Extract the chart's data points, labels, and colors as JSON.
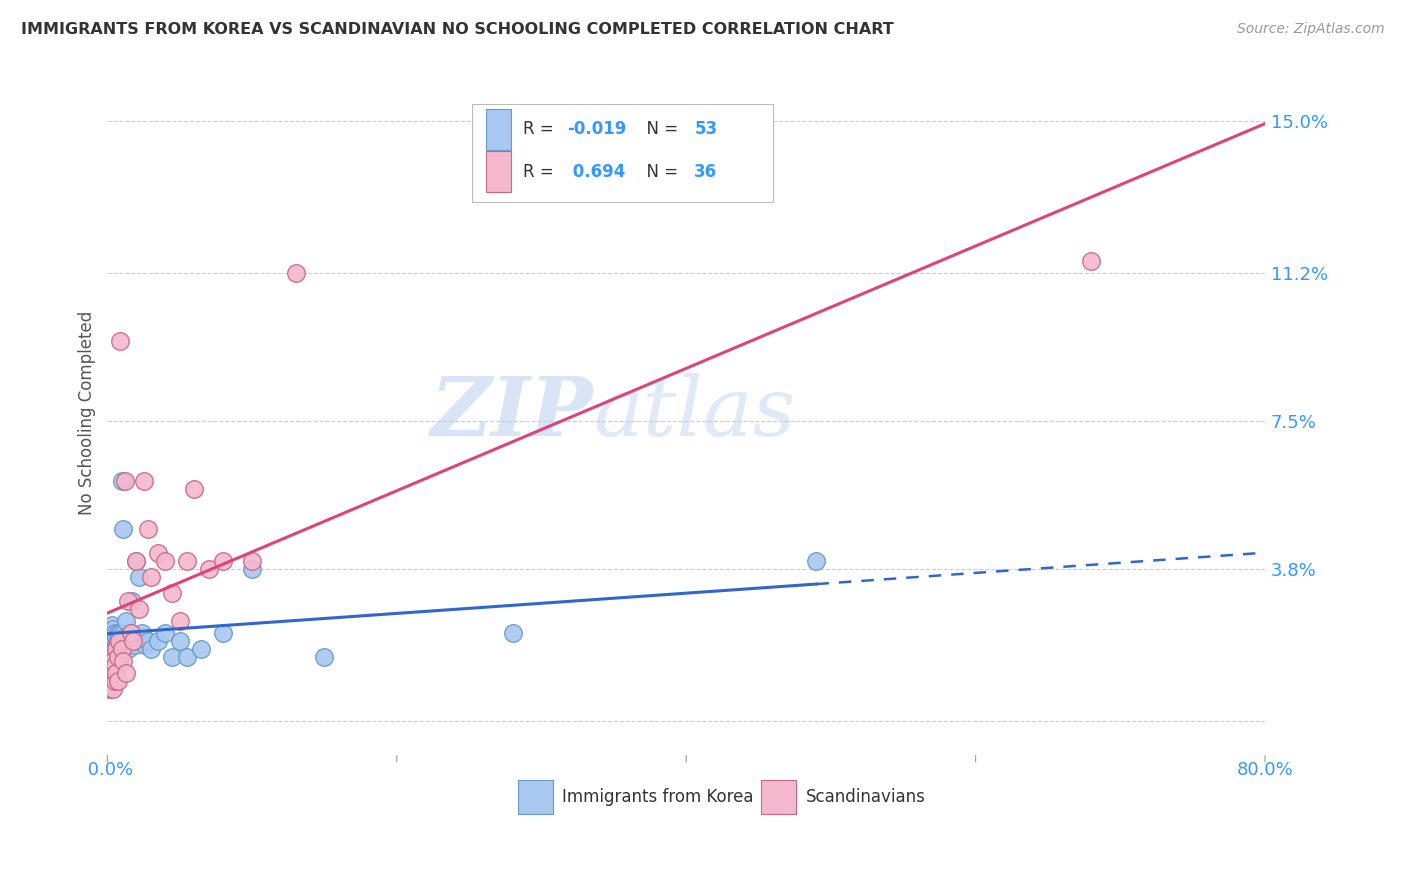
{
  "title": "IMMIGRANTS FROM KOREA VS SCANDINAVIAN NO SCHOOLING COMPLETED CORRELATION CHART",
  "source": "Source: ZipAtlas.com",
  "ylabel": "No Schooling Completed",
  "yticks": [
    0.0,
    0.038,
    0.075,
    0.112,
    0.15
  ],
  "ytick_labels": [
    "",
    "3.8%",
    "7.5%",
    "11.2%",
    "15.0%"
  ],
  "xlim": [
    0.0,
    0.8
  ],
  "ylim": [
    -0.008,
    0.162
  ],
  "korea_color": "#a8c8f0",
  "korea_edge": "#6699cc",
  "scand_color": "#f4b8cc",
  "scand_edge": "#cc6688",
  "korea_R": -0.019,
  "korea_N": 53,
  "scand_R": 0.694,
  "scand_N": 36,
  "legend_label_korea": "Immigrants from Korea",
  "legend_label_scand": "Scandinavians",
  "watermark_zip": "ZIP",
  "watermark_atlas": "atlas",
  "korea_line_color": "#3366cc",
  "scand_line_color": "#dd4477",
  "background_color": "#ffffff",
  "grid_color": "#cccccc",
  "title_color": "#333333",
  "axis_color": "#3399ff",
  "tick_color": "#3399ff",
  "korea_x": [
    0.001,
    0.002,
    0.002,
    0.003,
    0.003,
    0.003,
    0.004,
    0.004,
    0.004,
    0.005,
    0.005,
    0.005,
    0.006,
    0.006,
    0.006,
    0.007,
    0.007,
    0.007,
    0.008,
    0.008,
    0.008,
    0.009,
    0.009,
    0.01,
    0.01,
    0.011,
    0.011,
    0.012,
    0.012,
    0.013,
    0.014,
    0.015,
    0.016,
    0.017,
    0.018,
    0.019,
    0.02,
    0.022,
    0.024,
    0.026,
    0.028,
    0.03,
    0.035,
    0.04,
    0.045,
    0.05,
    0.055,
    0.065,
    0.08,
    0.1,
    0.15,
    0.28,
    0.49
  ],
  "korea_y": [
    0.02,
    0.018,
    0.022,
    0.016,
    0.02,
    0.024,
    0.019,
    0.021,
    0.023,
    0.017,
    0.02,
    0.022,
    0.016,
    0.019,
    0.021,
    0.018,
    0.02,
    0.022,
    0.015,
    0.019,
    0.021,
    0.016,
    0.022,
    0.06,
    0.02,
    0.048,
    0.022,
    0.019,
    0.021,
    0.025,
    0.018,
    0.02,
    0.022,
    0.03,
    0.021,
    0.019,
    0.04,
    0.036,
    0.022,
    0.019,
    0.02,
    0.018,
    0.02,
    0.022,
    0.016,
    0.02,
    0.016,
    0.018,
    0.022,
    0.038,
    0.016,
    0.022,
    0.04
  ],
  "scand_x": [
    0.001,
    0.002,
    0.003,
    0.004,
    0.004,
    0.005,
    0.005,
    0.006,
    0.006,
    0.007,
    0.007,
    0.008,
    0.009,
    0.01,
    0.011,
    0.012,
    0.013,
    0.014,
    0.016,
    0.018,
    0.02,
    0.022,
    0.025,
    0.028,
    0.03,
    0.035,
    0.04,
    0.045,
    0.05,
    0.055,
    0.06,
    0.07,
    0.08,
    0.1,
    0.13,
    0.68
  ],
  "scand_y": [
    0.008,
    0.01,
    0.012,
    0.008,
    0.015,
    0.01,
    0.014,
    0.012,
    0.018,
    0.01,
    0.016,
    0.02,
    0.095,
    0.018,
    0.015,
    0.06,
    0.012,
    0.03,
    0.022,
    0.02,
    0.04,
    0.028,
    0.06,
    0.048,
    0.036,
    0.042,
    0.04,
    0.032,
    0.025,
    0.04,
    0.058,
    0.038,
    0.04,
    0.04,
    0.112,
    0.115
  ]
}
